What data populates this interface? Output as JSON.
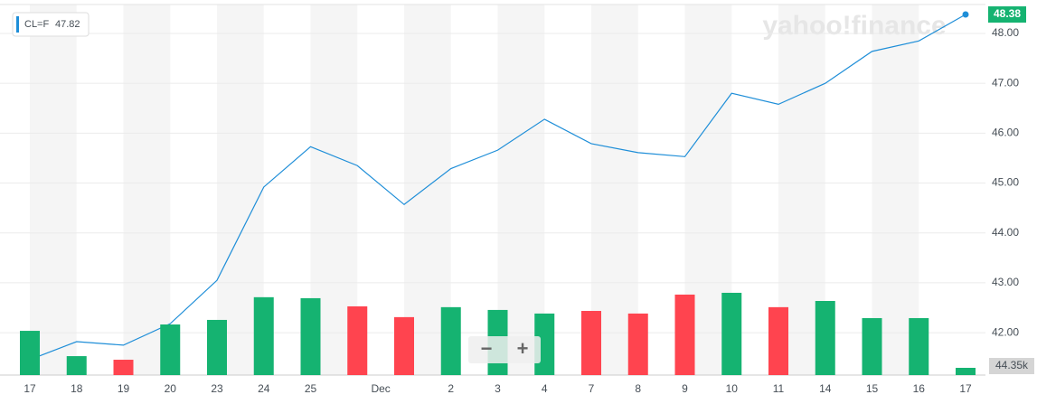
{
  "chart_data": {
    "type": "line",
    "watermark": "yahoo!finance",
    "legend_label": "CL=F",
    "legend_value": "47.82",
    "controls": [
      "−",
      "+"
    ],
    "categories": [
      "17",
      "18",
      "19",
      "20",
      "23",
      "24",
      "25",
      null,
      null,
      "2",
      "3",
      "4",
      "7",
      "8",
      "9",
      "10",
      "11",
      "14",
      "15",
      "16",
      "17"
    ],
    "month_label": "Dec",
    "series": [
      {
        "name": "CL=F",
        "color": "#1e8ed8",
        "values": [
          41.46,
          41.82,
          41.75,
          42.18,
          43.05,
          44.92,
          45.73,
          45.35,
          44.57,
          45.29,
          45.66,
          46.28,
          45.79,
          45.61,
          45.53,
          46.8,
          46.58,
          47.0,
          47.64,
          47.85,
          48.38
        ]
      },
      {
        "name": "Volume",
        "type": "bar",
        "axis": "y2",
        "values": [
          271000,
          116000,
          94000,
          310000,
          338000,
          477000,
          471000,
          421000,
          355000,
          416000,
          399000,
          377000,
          393000,
          377000,
          493000,
          504000,
          416000,
          454000,
          349000,
          349000,
          44350
        ],
        "colors": [
          "#15b371",
          "#15b371",
          "#ff444f",
          "#15b371",
          "#15b371",
          "#15b371",
          "#15b371",
          "#ff444f",
          "#ff444f",
          "#15b371",
          "#15b371",
          "#15b371",
          "#ff444f",
          "#ff444f",
          "#ff444f",
          "#15b371",
          "#ff444f",
          "#15b371",
          "#15b371",
          "#15b371",
          "#15b371"
        ],
        "value_labels": [
          null,
          null,
          null,
          null,
          null,
          null,
          null,
          null,
          null,
          null,
          null,
          null,
          null,
          null,
          null,
          null,
          null,
          null,
          null,
          null,
          "44.35k"
        ]
      }
    ],
    "ylim": [
      41.15,
      48.58
    ],
    "yticks": [
      {
        "value": 42,
        "label": "42.00"
      },
      {
        "value": 43,
        "label": "43.00"
      },
      {
        "value": 44,
        "label": "44.00"
      },
      {
        "value": 45,
        "label": "45.00"
      },
      {
        "value": 46,
        "label": "46.00"
      },
      {
        "value": 47,
        "label": "47.00"
      },
      {
        "value": 48,
        "label": "48.00"
      }
    ],
    "y2lim": [
      0,
      2270000
    ],
    "grid": true
  }
}
